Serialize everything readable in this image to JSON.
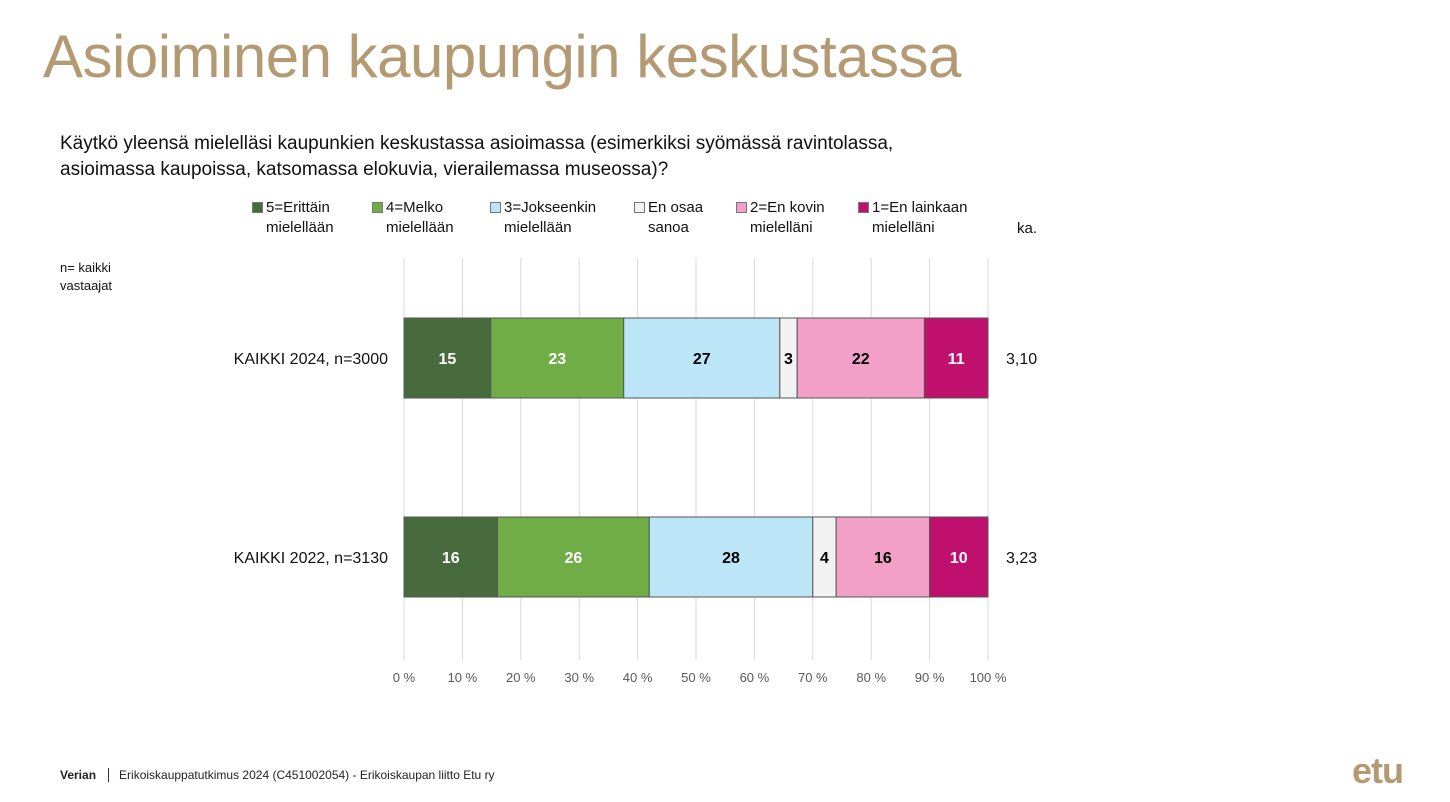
{
  "page": {
    "title": "Asioiminen kaupungin keskustassa",
    "question_line1": "Käytkö yleensä mielelläsi kaupunkien keskustassa asioimassa (esimerkiksi syömässä ravintolassa,",
    "question_line2": "asioimassa kaupoissa, katsomassa elokuvia, vierailemassa museossa)?",
    "base_line1": "n= kaikki",
    "base_line2": "vastaajat",
    "footer_brand": "Verian",
    "footer_text": "Erikoiskauppatutkimus 2024 (C451002054)  -  Erikoiskaupan liitto Etu ry",
    "logo": "etu"
  },
  "legend": [
    {
      "line1": "5=Erittäin",
      "line2": "mielellään",
      "color": "#476b3c"
    },
    {
      "line1": "4=Melko",
      "line2": "mielellään",
      "color": "#70ad47"
    },
    {
      "line1": "3=Jokseenkin",
      "line2": "mielellään",
      "color": "#bde5f8"
    },
    {
      "line1": "En osaa",
      "line2": "sanoa",
      "color": "#f2f2f2"
    },
    {
      "line1": "2=En kovin",
      "line2": "mielelläni",
      "color": "#f2a0c8"
    },
    {
      "line1": "1=En lainkaan",
      "line2": "mielelläni",
      "color": "#c0106e"
    }
  ],
  "ka_header": "ka.",
  "chart_data": {
    "type": "bar",
    "orientation": "horizontal",
    "stacked": "percent",
    "categories": [
      "KAIKKI 2024, n=3000",
      "KAIKKI 2022, n=3130"
    ],
    "series": [
      {
        "name": "5=Erittäin mielellään",
        "values": [
          15,
          16
        ],
        "color": "#476b3c",
        "label_color": "#ffffff"
      },
      {
        "name": "4=Melko mielellään",
        "values": [
          23,
          26
        ],
        "color": "#70ad47",
        "label_color": "#ffffff"
      },
      {
        "name": "3=Jokseenkin mielellään",
        "values": [
          27,
          28
        ],
        "color": "#bde5f8",
        "label_color": "#000000"
      },
      {
        "name": "En osaa sanoa",
        "values": [
          3,
          4
        ],
        "color": "#f2f2f2",
        "label_color": "#000000"
      },
      {
        "name": "2=En kovin mielelläni",
        "values": [
          22,
          16
        ],
        "color": "#f2a0c8",
        "label_color": "#000000"
      },
      {
        "name": "1=En lainkaan mielelläni",
        "values": [
          11,
          10
        ],
        "color": "#c0106e",
        "label_color": "#ffffff"
      }
    ],
    "averages": [
      "3,10",
      "3,23"
    ],
    "xlim": [
      0,
      100
    ],
    "xticks": [
      "0 %",
      "10 %",
      "20 %",
      "30 %",
      "40 %",
      "50 %",
      "60 %",
      "70 %",
      "80 %",
      "90 %",
      "100 %"
    ],
    "grid": true,
    "legend_position": "top"
  }
}
